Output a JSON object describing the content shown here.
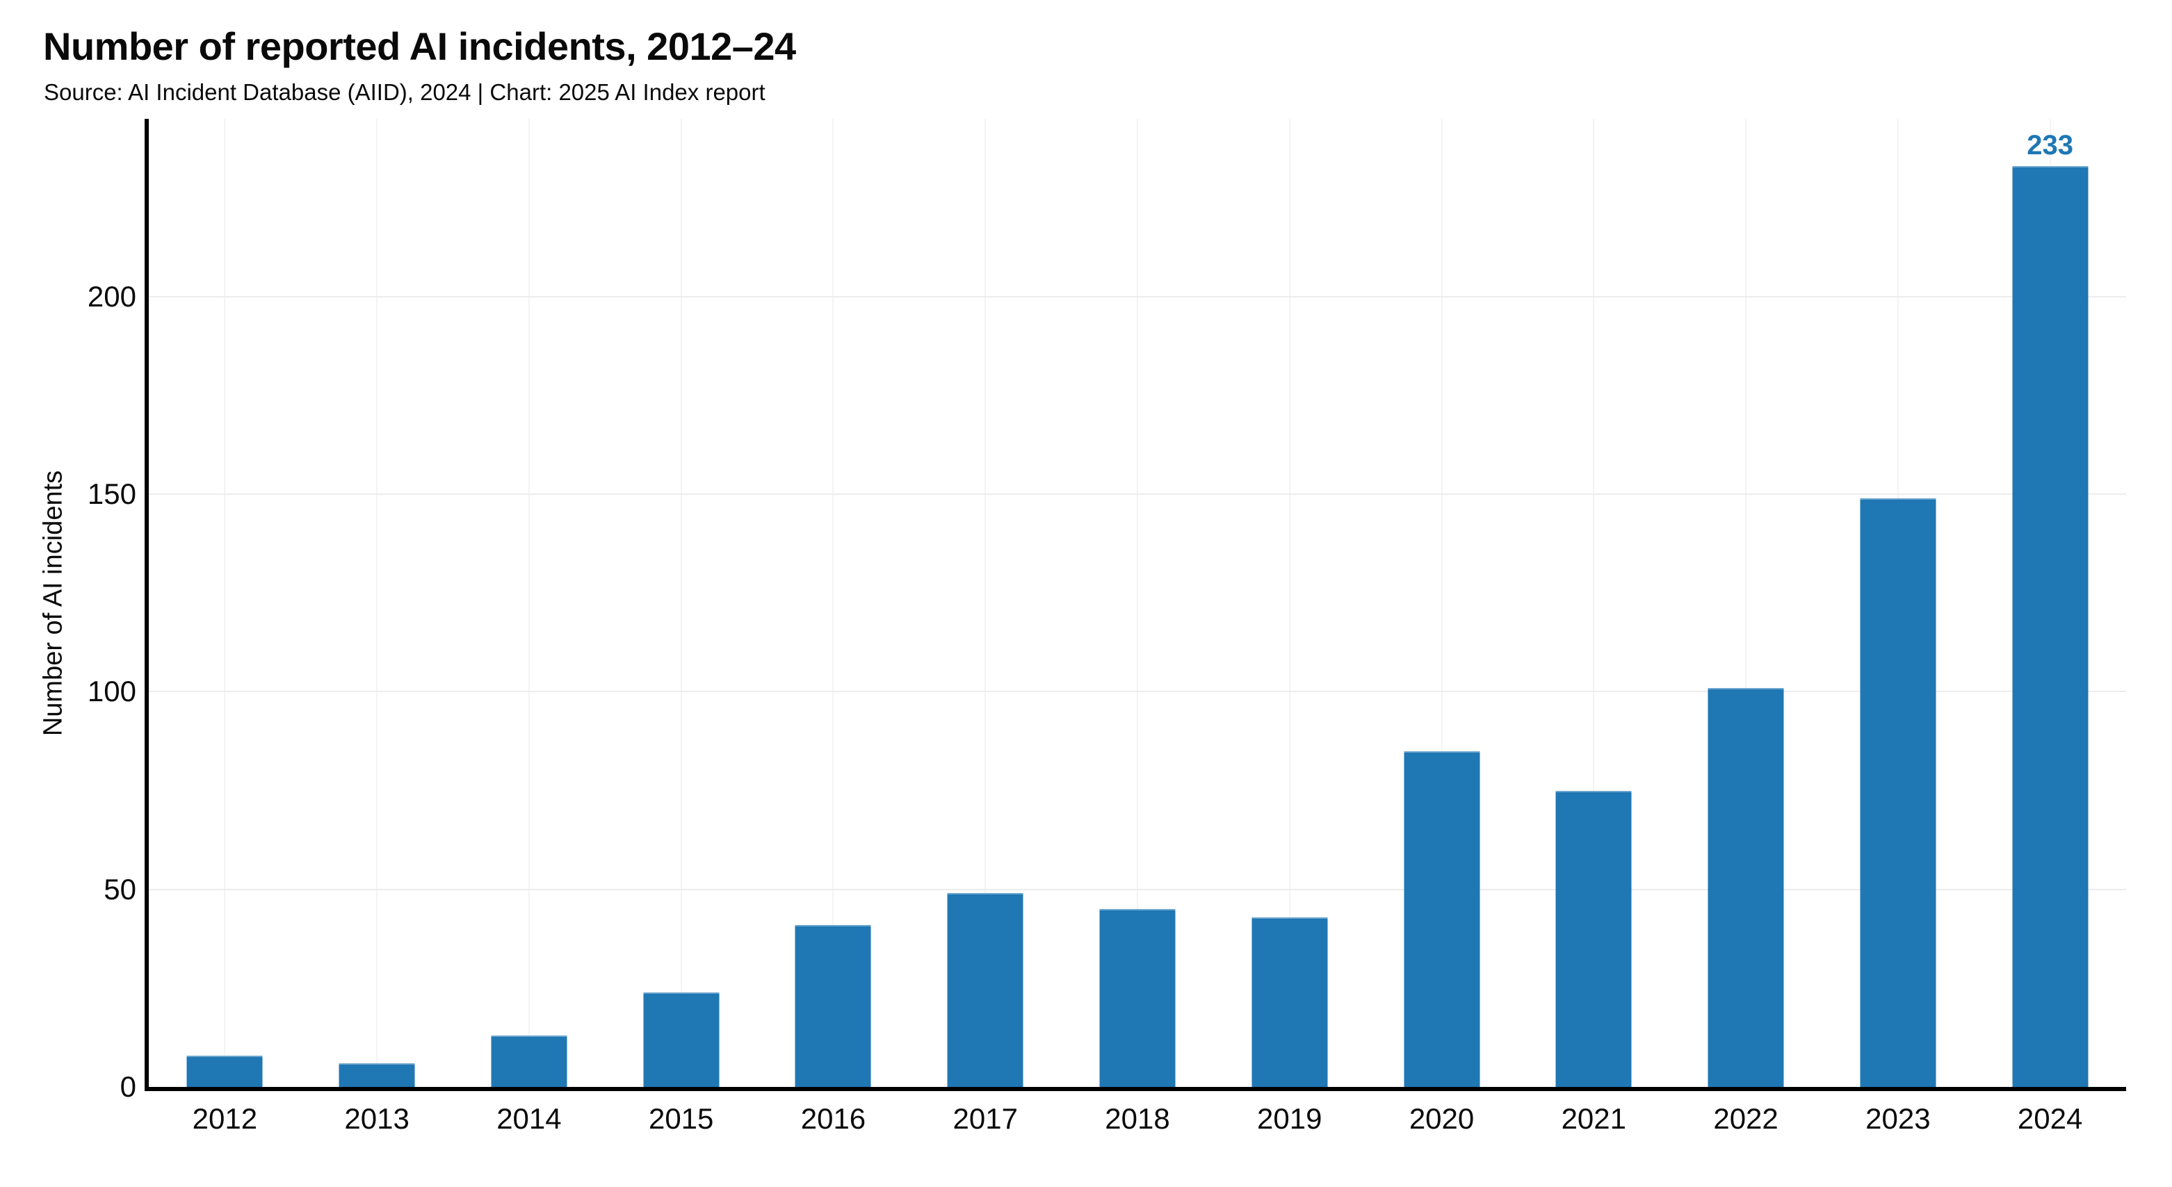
{
  "chart_data": {
    "type": "bar",
    "title": "Number of reported AI incidents, 2012–24",
    "source": "Source: AI Incident Database (AIID), 2024 | Chart: 2025 AI Index report",
    "ylabel": "Number of AI incidents",
    "xlabel": "",
    "categories": [
      "2012",
      "2013",
      "2014",
      "2015",
      "2016",
      "2017",
      "2018",
      "2019",
      "2020",
      "2021",
      "2022",
      "2023",
      "2024"
    ],
    "values": [
      8,
      6,
      13,
      24,
      41,
      49,
      45,
      43,
      85,
      75,
      101,
      149,
      233
    ],
    "yticks": [
      0,
      50,
      100,
      150,
      200
    ],
    "ylim": [
      0,
      245
    ],
    "grid": true,
    "legend_position": "none",
    "bar_width_fraction": 0.5,
    "annotation": {
      "category": "2024",
      "label": "233"
    },
    "colors": {
      "bar": "#1f77b4",
      "annotation": "#1f77b4",
      "axis": "#000000",
      "hgrid": "#ececec",
      "vgrid": "#f4f4f4",
      "text": "#0a0a0a"
    }
  }
}
